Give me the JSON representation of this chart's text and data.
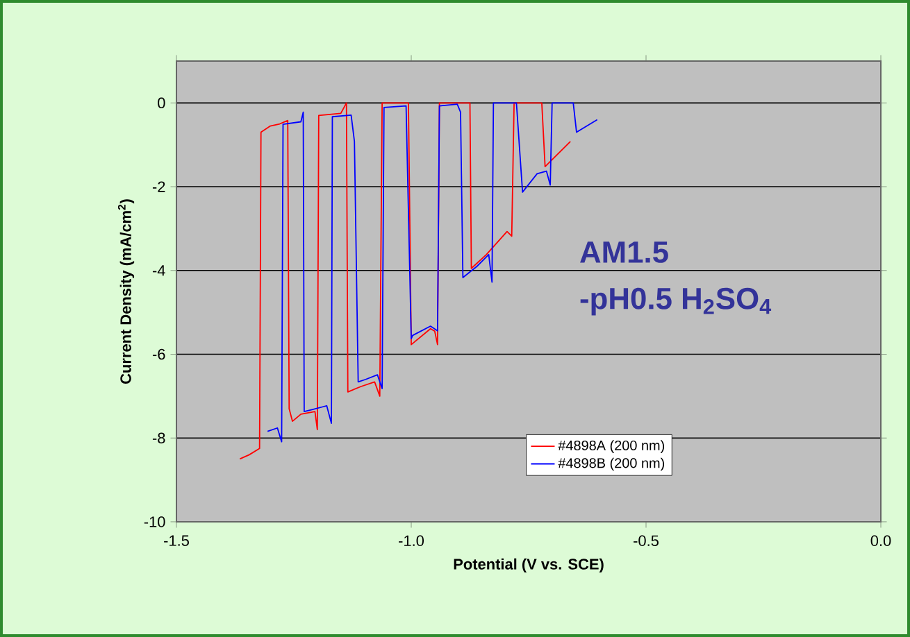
{
  "chart_data": {
    "type": "line",
    "xlabel": "Potential (V vs. SCE)",
    "ylabel": "Current Density (mA/cm$^{2}$)",
    "xlim": [
      -1.5,
      0
    ],
    "ylim": [
      -10,
      1
    ],
    "xticks": [
      {
        "value": -1.5,
        "label": "-1.5"
      },
      {
        "value": -1.0,
        "label": "-1.0"
      },
      {
        "value": -0.5,
        "label": "-0.5"
      },
      {
        "value": 0.0,
        "label": "0.0"
      }
    ],
    "yticks": [
      -10,
      -8,
      -6,
      -4,
      -2,
      0
    ],
    "grid": "y",
    "legend": "bottom",
    "marker": "none",
    "line_style": "solid",
    "annotations": [
      "AM1.5",
      "-pH0.5 H$_{2}$SO$_{4}$"
    ],
    "series": [
      {
        "name": "#4898A (200 nm)",
        "color": "#ff0000",
        "x": [
          -1.365,
          -1.345,
          -1.323,
          -1.32,
          -1.3,
          -1.28,
          -1.263,
          -1.26,
          -1.253,
          -1.235,
          -1.205,
          -1.2,
          -1.197,
          -1.15,
          -1.138,
          -1.135,
          -1.107,
          -1.078,
          -1.067,
          -1.062,
          -1.006,
          -1.0,
          -0.959,
          -0.95,
          -0.944,
          -0.94,
          -0.875,
          -0.872,
          -0.84,
          -0.796,
          -0.786,
          -0.781,
          -0.722,
          -0.715,
          -0.661
        ],
        "values": [
          -8.5,
          -8.4,
          -8.25,
          -0.7,
          -0.55,
          -0.5,
          -0.42,
          -7.3,
          -7.6,
          -7.43,
          -7.37,
          -7.8,
          -0.3,
          -0.25,
          0,
          -6.9,
          -6.77,
          -6.66,
          -7.0,
          0,
          0,
          -5.77,
          -5.39,
          -5.45,
          -5.77,
          0,
          0,
          -3.95,
          -3.62,
          -3.07,
          -3.18,
          0,
          0,
          -1.52,
          -0.92
        ]
      },
      {
        "name": "#4898B (200 nm)",
        "color": "#0000ff",
        "x": [
          -1.306,
          -1.285,
          -1.276,
          -1.273,
          -1.235,
          -1.23,
          -1.228,
          -1.21,
          -1.18,
          -1.17,
          -1.168,
          -1.128,
          -1.121,
          -1.113,
          -1.097,
          -1.072,
          -1.062,
          -1.058,
          -1.011,
          -1.0,
          -0.997,
          -0.959,
          -0.944,
          -0.94,
          -0.902,
          -0.895,
          -0.89,
          -0.86,
          -0.835,
          -0.828,
          -0.825,
          -0.776,
          -0.763,
          -0.732,
          -0.712,
          -0.704,
          -0.7,
          -0.655,
          -0.648,
          -0.604
        ],
        "values": [
          -7.84,
          -7.76,
          -8.09,
          -0.51,
          -0.45,
          -0.22,
          -7.37,
          -7.32,
          -7.23,
          -7.65,
          -0.33,
          -0.29,
          -0.92,
          -6.66,
          -6.6,
          -6.49,
          -6.82,
          -0.11,
          -0.07,
          -5.63,
          -5.55,
          -5.33,
          -5.44,
          -0.07,
          -0.03,
          -0.22,
          -4.17,
          -3.9,
          -3.62,
          -4.28,
          0,
          0,
          -2.13,
          -1.69,
          -1.63,
          -1.96,
          0,
          0,
          -0.7,
          -0.4
        ]
      }
    ]
  }
}
